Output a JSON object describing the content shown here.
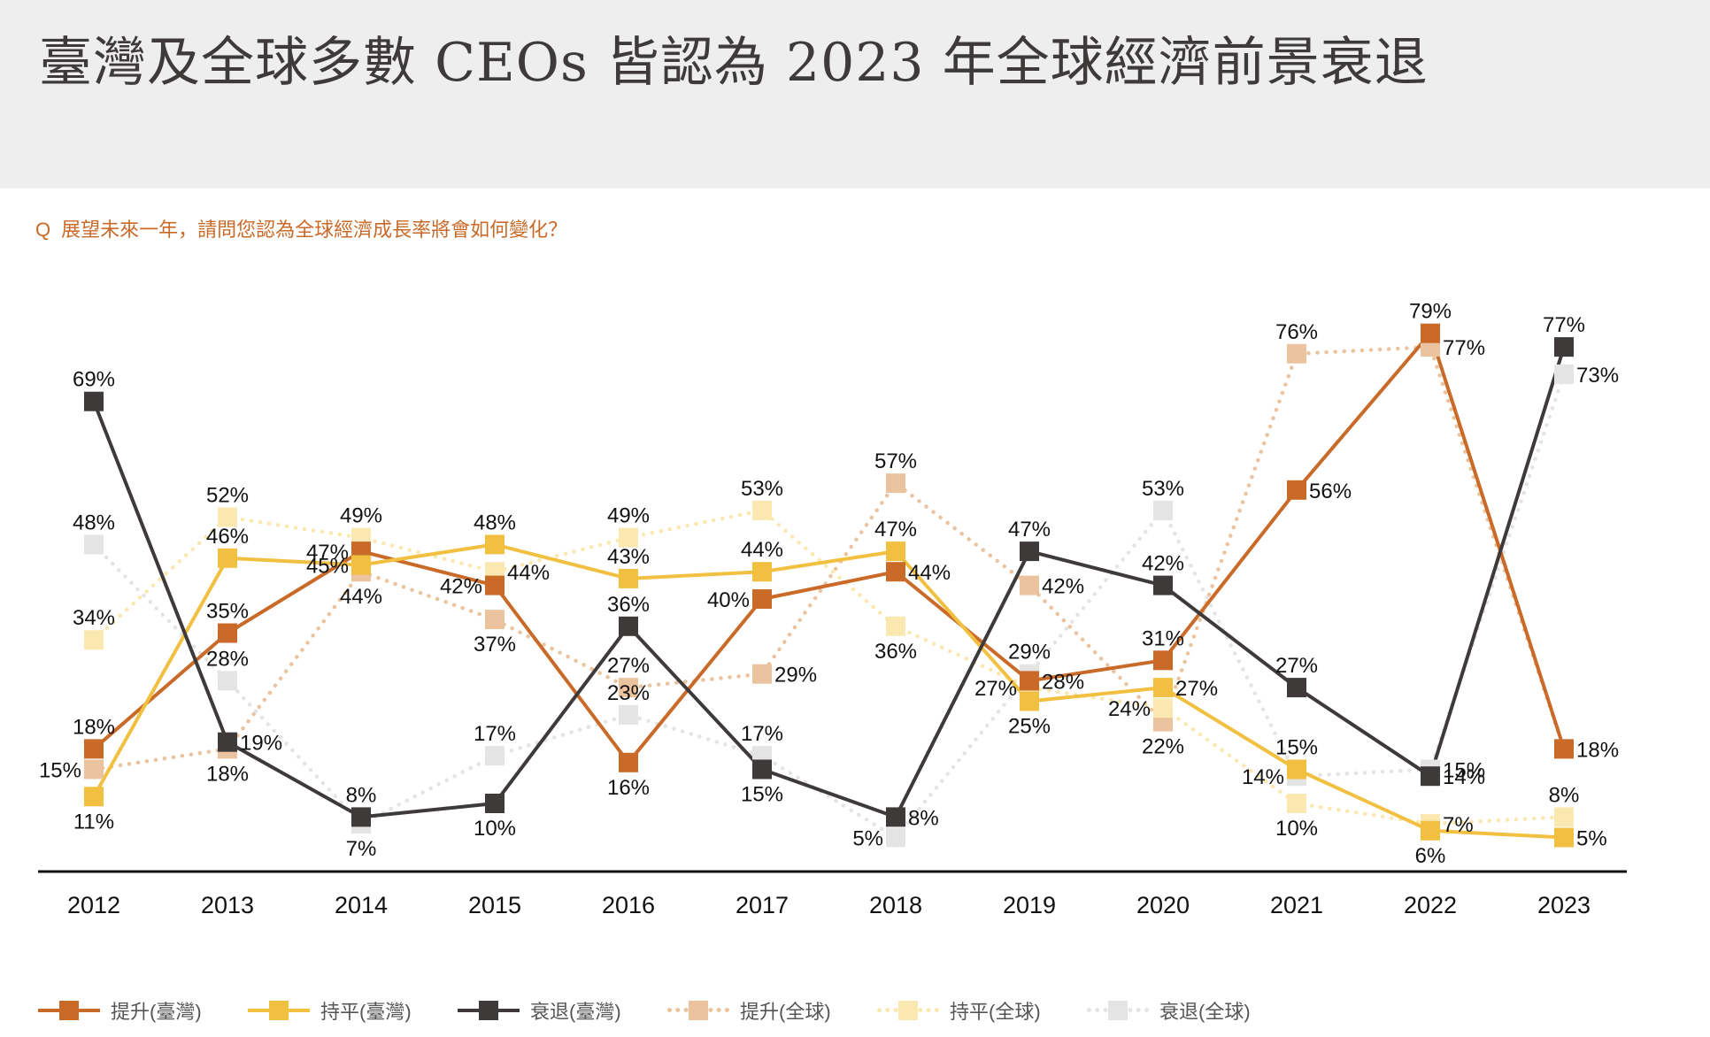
{
  "header": {
    "title": "臺灣及全球多數 CEOs 皆認為 2023 年全球經濟前景衰退"
  },
  "question": {
    "marker": "Q",
    "text": "展望未來一年，請問您認為全球經濟成長率將會如何變化？"
  },
  "chart_data": {
    "type": "line",
    "title": "臺灣及全球多數 CEOs 皆認為 2023 年全球經濟前景衰退",
    "subtitle": "Q 展望未來一年，請問您認為全球經濟成長率將會如何變化？",
    "xlabel": "",
    "ylabel": "",
    "unit": "%",
    "ylim": [
      0,
      80
    ],
    "grid": false,
    "legend_position": "bottom",
    "x": [
      "2012",
      "2013",
      "2014",
      "2015",
      "2016",
      "2017",
      "2018",
      "2019",
      "2020",
      "2021",
      "2022",
      "2023"
    ],
    "series": [
      {
        "name": "提升(全球)",
        "key": "global_up",
        "style": "dotted",
        "color": "#ebc49f",
        "values": [
          15,
          18,
          44,
          37,
          27,
          29,
          57,
          42,
          22,
          76,
          77,
          18
        ],
        "label_pos": [
          "left",
          "bottom",
          "bottom",
          "bottom",
          "top",
          "right",
          "top",
          "right",
          "bottom",
          "top",
          "right",
          "none"
        ]
      },
      {
        "name": "持平(全球)",
        "key": "global_flat",
        "style": "dotted",
        "color": "#fbe8b0",
        "values": [
          34,
          52,
          49,
          44,
          49,
          53,
          36,
          27,
          24,
          10,
          7,
          8
        ],
        "label_pos": [
          "top",
          "top",
          "top",
          "right",
          "top",
          "top",
          "bottom",
          "left",
          "left",
          "bottom",
          "right",
          "top"
        ]
      },
      {
        "name": "衰退(全球)",
        "key": "global_down",
        "style": "dotted",
        "color": "#e4e4e4",
        "values": [
          48,
          28,
          7,
          17,
          23,
          17,
          5,
          29,
          53,
          14,
          15,
          73
        ],
        "label_pos": [
          "top",
          "top",
          "bottom",
          "top",
          "top",
          "top",
          "left",
          "top",
          "top",
          "left",
          "right",
          "right"
        ]
      },
      {
        "name": "提升(臺灣)",
        "key": "tw_up",
        "style": "solid",
        "color": "#c96a28",
        "values": [
          18,
          35,
          47,
          42,
          16,
          40,
          44,
          28,
          31,
          56,
          79,
          18
        ],
        "label_pos": [
          "top",
          "top",
          "left",
          "left",
          "bottom",
          "left",
          "right",
          "right",
          "top",
          "right",
          "top",
          "right"
        ]
      },
      {
        "name": "持平(臺灣)",
        "key": "tw_flat",
        "style": "solid",
        "color": "#f2c040",
        "values": [
          11,
          46,
          45,
          48,
          43,
          44,
          47,
          25,
          27,
          15,
          6,
          5
        ],
        "label_pos": [
          "bottom",
          "top",
          "left",
          "top",
          "top",
          "top",
          "top",
          "bottom",
          "right",
          "top",
          "bottom",
          "right"
        ]
      },
      {
        "name": "衰退(臺灣)",
        "key": "tw_down",
        "style": "solid",
        "color": "#3d3a39",
        "values": [
          69,
          19,
          8,
          10,
          36,
          15,
          8,
          47,
          42,
          27,
          14,
          77
        ],
        "label_pos": [
          "top",
          "right",
          "top",
          "bottom",
          "top",
          "bottom",
          "right",
          "top",
          "top",
          "top",
          "right",
          "top"
        ]
      }
    ]
  },
  "legend": [
    {
      "label": "提升(臺灣)",
      "color": "#c96a28",
      "style": "solid",
      "icon": "square-marker-line"
    },
    {
      "label": "持平(臺灣)",
      "color": "#f2c040",
      "style": "solid",
      "icon": "square-marker-line"
    },
    {
      "label": "衰退(臺灣)",
      "color": "#3d3a39",
      "style": "solid",
      "icon": "square-marker-line"
    },
    {
      "label": "提升(全球)",
      "color": "#ebc49f",
      "style": "dotted",
      "icon": "square-marker-dotted-line"
    },
    {
      "label": "持平(全球)",
      "color": "#fbe8b0",
      "style": "dotted",
      "icon": "square-marker-dotted-line"
    },
    {
      "label": "衰退(全球)",
      "color": "#e4e4e4",
      "style": "dotted",
      "icon": "square-marker-dotted-line"
    }
  ]
}
